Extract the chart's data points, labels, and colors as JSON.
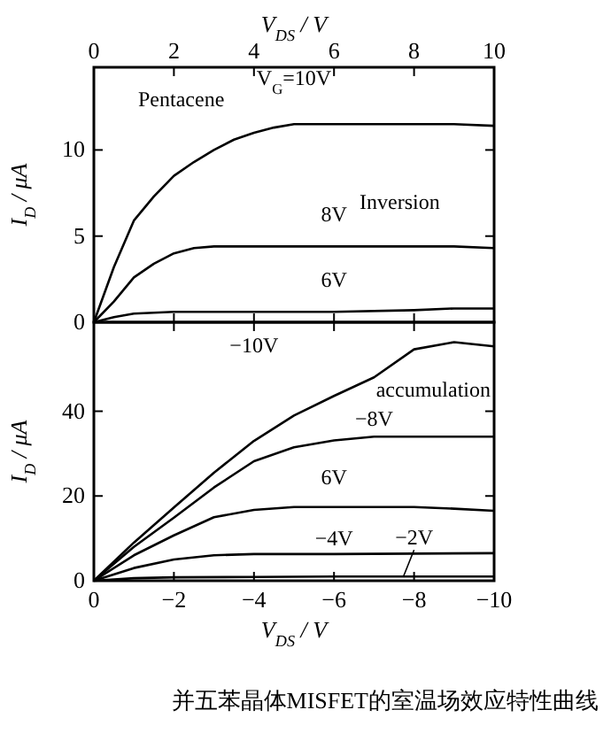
{
  "chart_data": [
    {
      "type": "line",
      "xlabel": "V$_{DS}$ / V",
      "ylabel": "I$_{D}$ / μA",
      "xlim": [
        0,
        10
      ],
      "ylim": [
        0,
        14.8
      ],
      "xticks": [
        0,
        2,
        4,
        6,
        8,
        10
      ],
      "yticks": [
        0,
        5,
        10
      ],
      "series": [
        {
          "name": "V$_{G}$=10V",
          "color": "#000000",
          "x": [
            0,
            0.5,
            1,
            1.5,
            2,
            2.5,
            3,
            3.5,
            4,
            4.5,
            5,
            6,
            7,
            8,
            9,
            10
          ],
          "values": [
            0,
            3.2,
            5.9,
            7.3,
            8.5,
            9.3,
            10,
            10.6,
            11,
            11.3,
            11.5,
            11.5,
            11.5,
            11.5,
            11.5,
            11.4
          ]
        },
        {
          "name": "8V",
          "color": "#000000",
          "x": [
            0,
            0.5,
            1,
            1.5,
            2,
            2.5,
            3,
            4,
            5,
            6,
            7,
            8,
            9,
            10
          ],
          "values": [
            0,
            1.2,
            2.6,
            3.4,
            4,
            4.3,
            4.4,
            4.4,
            4.4,
            4.4,
            4.4,
            4.4,
            4.4,
            4.3
          ]
        },
        {
          "name": "6V",
          "color": "#000000",
          "x": [
            0,
            0.5,
            1,
            2,
            4,
            6,
            8,
            9,
            10
          ],
          "values": [
            0,
            0.3,
            0.5,
            0.6,
            0.6,
            0.6,
            0.7,
            0.8,
            0.8
          ]
        }
      ],
      "annotations": [
        "Pentacene",
        "Inversion"
      ]
    },
    {
      "type": "line",
      "xlabel": "V$_{DS}$ / V",
      "ylabel": "I$_{D}$ / μA",
      "xlim": [
        0,
        -10
      ],
      "ylim": [
        0,
        61
      ],
      "xticks": [
        0,
        -2,
        -4,
        -6,
        -8,
        -10
      ],
      "yticks": [
        0,
        20,
        40
      ],
      "series": [
        {
          "name": "−10V",
          "color": "#000000",
          "x": [
            0,
            -1,
            -2,
            -3,
            -4,
            -5,
            -6,
            -7,
            -8,
            -9,
            -10
          ],
          "values": [
            0,
            9,
            17.3,
            25.5,
            33,
            39,
            43.6,
            48,
            54.6,
            56.3,
            55.3
          ]
        },
        {
          "name": "−8V",
          "color": "#000000",
          "x": [
            0,
            -1,
            -2,
            -3,
            -4,
            -5,
            -6,
            -7,
            -8,
            -9,
            -10
          ],
          "values": [
            0,
            8,
            14.9,
            22,
            28.2,
            31.5,
            33.1,
            34,
            34,
            34,
            34
          ]
        },
        {
          "name": "6V",
          "color": "#000000",
          "x": [
            0,
            -1,
            -2,
            -3,
            -4,
            -5,
            -6,
            -7,
            -8,
            -9,
            -10
          ],
          "values": [
            0,
            6,
            10.7,
            15,
            16.7,
            17.4,
            17.4,
            17.4,
            17.4,
            17,
            16.5
          ]
        },
        {
          "name": "−4V",
          "color": "#000000",
          "x": [
            0,
            -1,
            -2,
            -3,
            -4,
            -6,
            -8,
            -10
          ],
          "values": [
            0,
            3,
            5,
            6,
            6.3,
            6.3,
            6.4,
            6.5
          ]
        },
        {
          "name": "−2V",
          "color": "#000000",
          "x": [
            0,
            -1,
            -2,
            -4,
            -6,
            -8,
            -10
          ],
          "values": [
            0,
            0.6,
            0.8,
            0.9,
            1,
            1,
            1
          ]
        }
      ],
      "annotations": [
        "accumulation",
        "并五苯晶体MISFET的室温场效应特性曲线"
      ]
    }
  ]
}
